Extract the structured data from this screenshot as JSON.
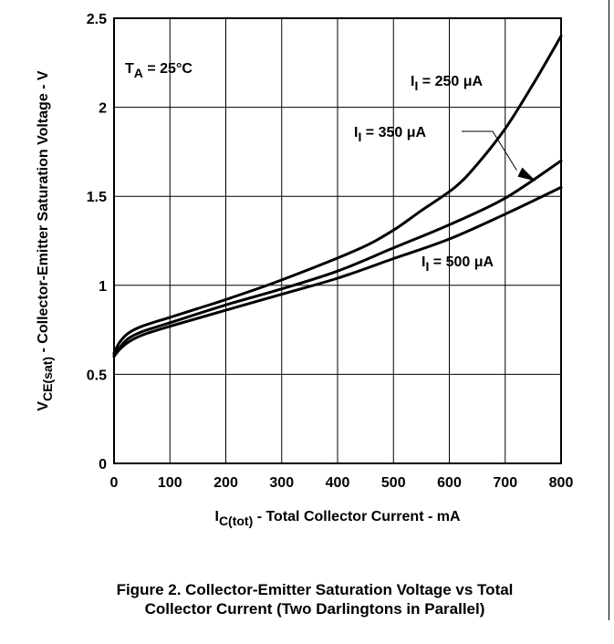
{
  "chart_data": {
    "type": "line",
    "x_ticks": [
      "0",
      "100",
      "200",
      "300",
      "400",
      "500",
      "600",
      "700",
      "800"
    ],
    "y_ticks": [
      "0",
      "0.5",
      "1",
      "1.5",
      "2",
      "2.5"
    ],
    "xlim": [
      0,
      800
    ],
    "ylim": [
      0,
      2.5
    ],
    "grid": true,
    "xlabel": {
      "main": "I",
      "sub": "C(tot)",
      "rest": " -  Total Collector Current -  mA"
    },
    "ylabel": {
      "main": "V",
      "sub": "CE(sat)",
      "rest": " -  Collector-Emitter Saturation Voltage - V"
    },
    "annotation": {
      "main": "T",
      "sub": "A",
      "rest": " = 25°C"
    },
    "series": [
      {
        "name": {
          "main": "I",
          "sub": "I",
          "rest": " = 250 μA"
        },
        "x": [
          0,
          10,
          25,
          50,
          100,
          150,
          200,
          300,
          435,
          500,
          550,
          610,
          650,
          700,
          750,
          800
        ],
        "y": [
          0.62,
          0.68,
          0.73,
          0.77,
          0.82,
          0.87,
          0.92,
          1.03,
          1.2,
          1.31,
          1.42,
          1.55,
          1.68,
          1.88,
          2.13,
          2.4
        ]
      },
      {
        "name": {
          "main": "I",
          "sub": "I",
          "rest": " = 350 μA"
        },
        "x": [
          0,
          10,
          25,
          50,
          100,
          200,
          300,
          400,
          500,
          600,
          700,
          800
        ],
        "y": [
          0.61,
          0.65,
          0.7,
          0.74,
          0.79,
          0.89,
          0.98,
          1.08,
          1.21,
          1.34,
          1.49,
          1.7
        ]
      },
      {
        "name": {
          "main": "I",
          "sub": "I",
          "rest": " = 500 μA"
        },
        "x": [
          0,
          10,
          25,
          50,
          100,
          200,
          300,
          400,
          500,
          600,
          700,
          800
        ],
        "y": [
          0.6,
          0.64,
          0.68,
          0.72,
          0.77,
          0.86,
          0.95,
          1.04,
          1.15,
          1.26,
          1.4,
          1.55
        ]
      }
    ]
  },
  "caption": {
    "line1": "Figure 2. Collector-Emitter Saturation Voltage vs Total",
    "line2": "Collector Current (Two Darlingtons in Parallel)"
  }
}
